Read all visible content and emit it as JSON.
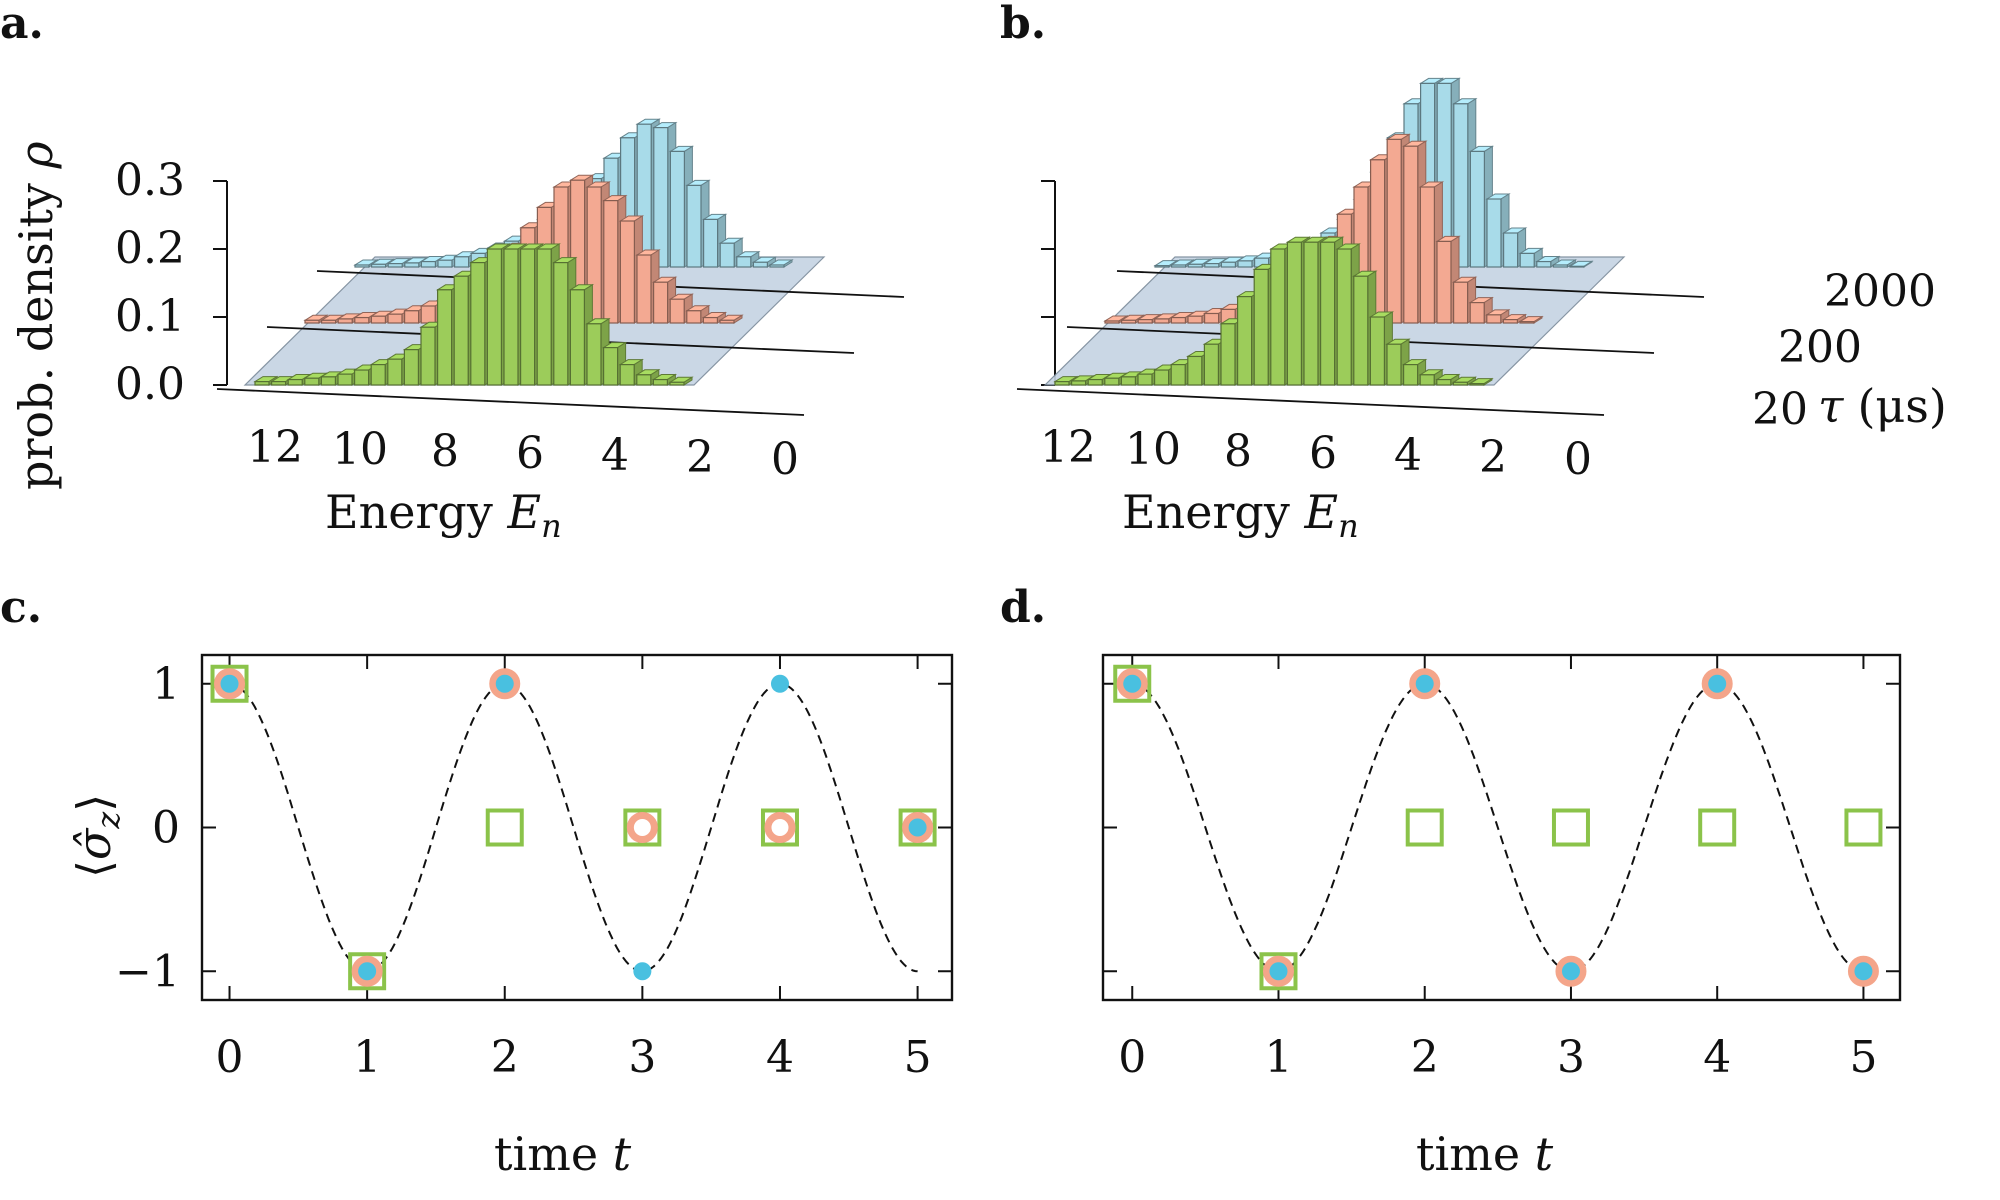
{
  "panels": {
    "a": {
      "letter": "a."
    },
    "b": {
      "letter": "b."
    },
    "c": {
      "letter": "c."
    },
    "d": {
      "letter": "d."
    }
  },
  "labels": {
    "prob_density": "prob. density ",
    "rho": "ρ",
    "energy": "Energy ",
    "E": "E",
    "n": "n",
    "tau": "τ",
    "tau_unit": "(μs)",
    "time": "time ",
    "t": "t",
    "sigma_open": "⟨",
    "sigma": "σ̂",
    "sigma_sub": "z",
    "sigma_close": "⟩"
  },
  "colors": {
    "tau_2000": "#a8dbe9",
    "tau_200": "#f3a992",
    "tau_20": "#9ccc5a",
    "plane": "#c5d3e3",
    "dot_blue": "#49c0e0",
    "ring_salmon": "#f4a58a",
    "square_green": "#8bc34a"
  },
  "chart_data": [
    {
      "panel": "a",
      "type": "bar",
      "xlabel": "Energy E_n",
      "ylabel": "prob. density ρ",
      "zlabel": "τ (μs)",
      "x_ticks": [
        "12",
        "10",
        "8",
        "6",
        "4",
        "2",
        "0"
      ],
      "y_ticks": [
        "0.0",
        "0.1",
        "0.2",
        "0.3"
      ],
      "ylim": [
        0,
        0.32
      ],
      "categories": [
        12.5,
        12,
        11.5,
        11,
        10.5,
        10,
        9.5,
        9,
        8.5,
        8,
        7.5,
        7,
        6.5,
        6,
        5.5,
        5,
        4.5,
        4,
        3.5,
        3,
        2.5,
        2,
        1.5,
        1,
        0.5,
        0
      ],
      "series": [
        {
          "name": "20",
          "values": [
            0.005,
            0.005,
            0.008,
            0.01,
            0.012,
            0.016,
            0.022,
            0.03,
            0.038,
            0.052,
            0.085,
            0.14,
            0.16,
            0.18,
            0.2,
            0.2,
            0.2,
            0.2,
            0.18,
            0.14,
            0.09,
            0.055,
            0.03,
            0.015,
            0.008,
            0.004
          ]
        },
        {
          "name": "200",
          "values": [
            0.004,
            0.004,
            0.006,
            0.008,
            0.01,
            0.013,
            0.018,
            0.025,
            0.034,
            0.045,
            0.065,
            0.085,
            0.11,
            0.14,
            0.17,
            0.2,
            0.21,
            0.2,
            0.18,
            0.15,
            0.1,
            0.06,
            0.035,
            0.018,
            0.008,
            0.004
          ]
        },
        {
          "name": "2000",
          "values": [
            0.003,
            0.004,
            0.005,
            0.006,
            0.008,
            0.01,
            0.015,
            0.02,
            0.028,
            0.038,
            0.055,
            0.07,
            0.085,
            0.1,
            0.13,
            0.16,
            0.19,
            0.21,
            0.205,
            0.17,
            0.12,
            0.07,
            0.035,
            0.015,
            0.007,
            0.003
          ]
        }
      ]
    },
    {
      "panel": "b",
      "type": "bar",
      "xlabel": "Energy E_n",
      "zlabel": "τ (μs)",
      "x_ticks": [
        "12",
        "10",
        "8",
        "6",
        "4",
        "2",
        "0"
      ],
      "z_ticks": [
        "20",
        "200",
        "2000"
      ],
      "ylim": [
        0,
        0.32
      ],
      "categories": [
        12.5,
        12,
        11.5,
        11,
        10.5,
        10,
        9.5,
        9,
        8.5,
        8,
        7.5,
        7,
        6.5,
        6,
        5.5,
        5,
        4.5,
        4,
        3.5,
        3,
        2.5,
        2,
        1.5,
        1,
        0.5,
        0
      ],
      "series": [
        {
          "name": "20",
          "values": [
            0.005,
            0.006,
            0.008,
            0.01,
            0.012,
            0.016,
            0.022,
            0.03,
            0.042,
            0.06,
            0.09,
            0.13,
            0.17,
            0.2,
            0.21,
            0.21,
            0.21,
            0.2,
            0.16,
            0.1,
            0.06,
            0.03,
            0.015,
            0.008,
            0.004,
            0.002
          ]
        },
        {
          "name": "200",
          "values": [
            0.003,
            0.004,
            0.005,
            0.006,
            0.008,
            0.01,
            0.014,
            0.02,
            0.028,
            0.038,
            0.052,
            0.07,
            0.095,
            0.12,
            0.16,
            0.2,
            0.24,
            0.27,
            0.26,
            0.2,
            0.12,
            0.06,
            0.03,
            0.012,
            0.005,
            0.002
          ]
        },
        {
          "name": "2000",
          "values": [
            0.002,
            0.003,
            0.004,
            0.005,
            0.007,
            0.009,
            0.013,
            0.018,
            0.025,
            0.035,
            0.05,
            0.07,
            0.1,
            0.14,
            0.19,
            0.24,
            0.27,
            0.27,
            0.24,
            0.17,
            0.1,
            0.05,
            0.02,
            0.008,
            0.003,
            0.001
          ]
        }
      ]
    },
    {
      "panel": "c",
      "type": "scatter",
      "xlabel": "time t",
      "ylabel": "⟨σ̂_z⟩",
      "xlim": [
        -0.2,
        5.25
      ],
      "ylim": [
        -1.2,
        1.2
      ],
      "x_ticks": [
        "0",
        "1",
        "2",
        "3",
        "4",
        "5"
      ],
      "y_ticks": [
        "1",
        "0",
        "−1"
      ],
      "curve": {
        "style": "dashed",
        "function": "cos(pi t)"
      },
      "series": [
        {
          "marker": "dot_blue",
          "x": [
            0,
            1,
            2,
            3,
            4,
            5
          ],
          "y": [
            1,
            -1,
            1,
            -1,
            1,
            0
          ]
        },
        {
          "marker": "ring_salmon",
          "x": [
            0,
            1,
            2,
            3,
            4,
            5
          ],
          "y": [
            1,
            -1,
            1,
            0,
            0,
            0
          ]
        },
        {
          "marker": "square_green",
          "x": [
            0,
            1,
            2,
            3,
            4,
            5
          ],
          "y": [
            1,
            -1,
            0,
            0,
            0,
            0
          ]
        }
      ]
    },
    {
      "panel": "d",
      "type": "scatter",
      "xlabel": "time t",
      "xlim": [
        -0.2,
        5.25
      ],
      "ylim": [
        -1.2,
        1.2
      ],
      "x_ticks": [
        "0",
        "1",
        "2",
        "3",
        "4",
        "5"
      ],
      "curve": {
        "style": "dashed",
        "function": "cos(pi t)"
      },
      "series": [
        {
          "marker": "dot_blue",
          "x": [
            0,
            1,
            2,
            3,
            4,
            5
          ],
          "y": [
            1,
            -1,
            1,
            -1,
            1,
            -1
          ]
        },
        {
          "marker": "ring_salmon",
          "x": [
            0,
            1,
            2,
            3,
            4,
            5
          ],
          "y": [
            1,
            -1,
            1,
            -1,
            1,
            -1
          ]
        },
        {
          "marker": "square_green",
          "x": [
            0,
            1,
            2,
            3,
            4,
            5
          ],
          "y": [
            1,
            -1,
            0,
            0,
            0,
            0
          ]
        }
      ]
    }
  ]
}
